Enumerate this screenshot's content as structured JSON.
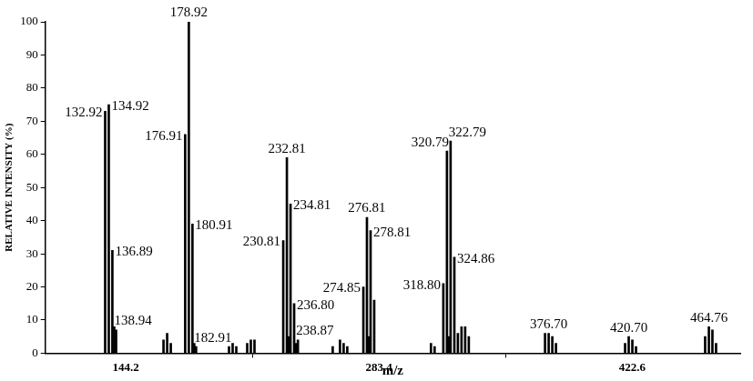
{
  "chart_data": {
    "type": "bar",
    "x_label": "m/z",
    "y_label": "RELATIVE INTENSITY (%)",
    "x": [
      132.92,
      134.92,
      136.89,
      137.91,
      138.94,
      165.0,
      167.0,
      169.0,
      176.91,
      178.92,
      180.91,
      181.9,
      182.91,
      201.0,
      203.0,
      205.0,
      211.0,
      213.0,
      215.0,
      230.81,
      232.81,
      233.81,
      234.81,
      236.8,
      237.8,
      238.87,
      258.0,
      262.0,
      264.0,
      266.0,
      274.85,
      276.81,
      277.8,
      278.81,
      280.81,
      312.0,
      314.0,
      318.8,
      320.79,
      321.8,
      322.79,
      324.86,
      326.8,
      328.8,
      330.8,
      332.8,
      374.7,
      376.7,
      378.7,
      380.7,
      418.7,
      420.7,
      422.7,
      424.7,
      462.7,
      464.76,
      466.7,
      468.7
    ],
    "values": [
      73,
      75,
      31,
      8,
      7,
      4,
      6,
      3,
      66,
      100,
      39,
      3,
      2,
      2,
      3,
      2,
      3,
      4,
      4,
      34,
      59,
      5,
      45,
      15,
      3,
      4,
      2,
      4,
      3,
      2,
      20,
      41,
      5,
      37,
      16,
      3,
      2,
      21,
      61,
      5,
      64,
      29,
      6,
      8,
      8,
      5,
      6,
      6,
      5,
      3,
      3,
      5,
      4,
      2,
      5,
      8,
      7,
      3
    ],
    "peak_labels": [
      "132.92",
      "134.92",
      "136.89",
      null,
      "138.94",
      null,
      null,
      null,
      "176.91",
      "178.92",
      "180.91",
      null,
      "182.91",
      null,
      null,
      null,
      null,
      null,
      null,
      "230.81",
      "232.81",
      null,
      "234.81",
      "236.80",
      null,
      "238.87",
      null,
      null,
      null,
      null,
      "274.85",
      "276.81",
      null,
      "278.81",
      null,
      null,
      null,
      "318.80",
      "320.79",
      null,
      "322.79",
      "324.86",
      null,
      null,
      null,
      null,
      null,
      "376.70",
      null,
      null,
      null,
      "420.70",
      null,
      null,
      null,
      "464.76",
      null,
      null
    ],
    "color": "#000000",
    "xlim": [
      100,
      482
    ],
    "xticks": [
      144.2,
      283.4,
      422.6
    ],
    "ylim": [
      0,
      100
    ],
    "yticks": [
      0,
      10,
      20,
      30,
      40,
      50,
      60,
      70,
      80,
      90,
      100
    ],
    "grid": false
  }
}
